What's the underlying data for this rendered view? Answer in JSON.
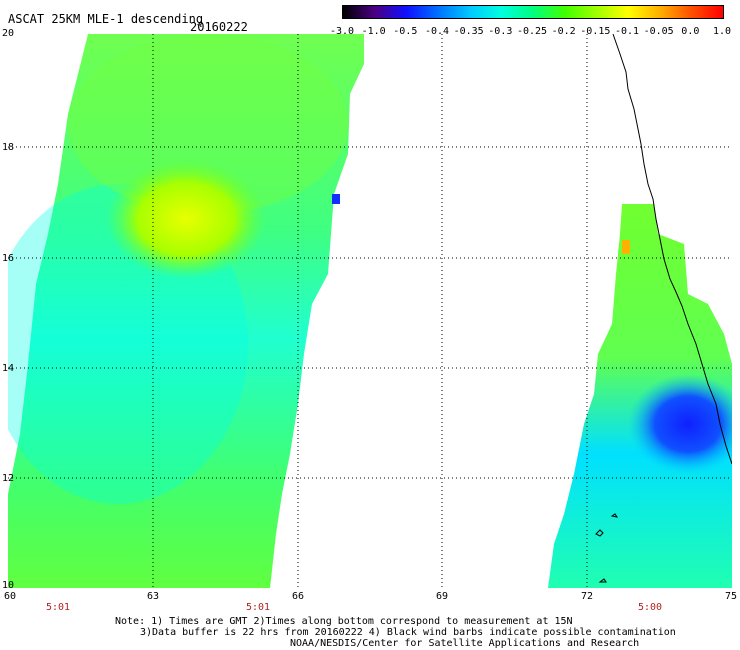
{
  "title": "ASCAT 25KM MLE-1 descending",
  "date": "20160222",
  "colorbar": {
    "labels": [
      "-3.0",
      "-1.0",
      "-0.5",
      "-0.4",
      "-0.35",
      "-0.3",
      "-0.25",
      "-0.2",
      "-0.15",
      "-0.1",
      "-0.05",
      "0.0",
      "1.0"
    ],
    "colors": [
      "#000000",
      "#4b0082",
      "#1010ff",
      "#0070ff",
      "#00c8ff",
      "#00ffe0",
      "#00ff80",
      "#40ff00",
      "#a0ff00",
      "#ffff00",
      "#ffb000",
      "#ff5000",
      "#ff0000"
    ]
  },
  "map": {
    "lat_labels": [
      "20",
      "18",
      "16",
      "14",
      "12",
      "10"
    ],
    "lon_labels": [
      "60",
      "63",
      "66",
      "69",
      "72",
      "75"
    ],
    "time_labels": [
      "5:01",
      "5:01",
      "5:00"
    ]
  },
  "notes": {
    "line1": "Note: 1) Times are GMT 2)Times along bottom correspond to measurement at 15N",
    "line2": "3)Data buffer is 22 hrs from 20160222 4) Black wind barbs indicate possible contamination",
    "line3": "NOAA/NESDIS/Center for Satellite Applications and Research"
  }
}
